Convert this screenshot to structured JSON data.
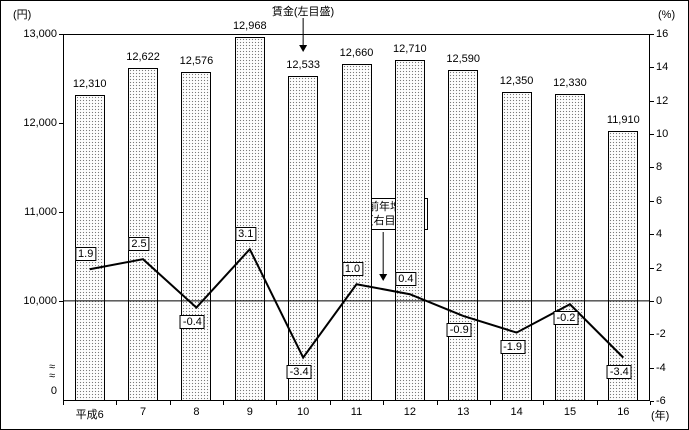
{
  "chart_data": {
    "type": "bar+line",
    "categories": [
      "平成6",
      "7",
      "8",
      "9",
      "10",
      "11",
      "12",
      "13",
      "14",
      "15",
      "16"
    ],
    "x_axis_unit": "(年)",
    "left_axis_unit": "(円)",
    "right_axis_unit": "(%)",
    "bar_series": {
      "name": "賃金",
      "axis": "left",
      "values": [
        12310,
        12622,
        12576,
        12968,
        12533,
        12660,
        12710,
        12590,
        12350,
        12330,
        11910
      ],
      "labels": [
        "12,310",
        "12,622",
        "12,576",
        "12,968",
        "12,533",
        "12,660",
        "12,710",
        "12,590",
        "12,350",
        "12,330",
        "11,910"
      ]
    },
    "line_series": {
      "name": "対前年増減率",
      "axis": "right",
      "values": [
        1.9,
        2.5,
        -0.4,
        3.1,
        -3.4,
        1.0,
        0.4,
        -0.9,
        -1.9,
        -0.2,
        -3.4
      ],
      "labels": [
        "1.9",
        "2.5",
        "-0.4",
        "3.1",
        "-3.4",
        "1.0",
        "0.4",
        "-0.9",
        "-1.9",
        "-0.2",
        "-3.4"
      ]
    },
    "left_axis": {
      "min": 10000,
      "max": 13000,
      "ticks": [
        13000,
        12000,
        11000,
        10000
      ],
      "tick_labels": [
        "13,000",
        "12,000",
        "11,000",
        "10,000"
      ],
      "break_symbol": "≈",
      "zero_label": "0"
    },
    "right_axis": {
      "min": -6,
      "max": 16,
      "step": 2,
      "tick_labels": [
        "16",
        "14",
        "12",
        "10",
        "8",
        "6",
        "4",
        "2",
        "0",
        "-2",
        "-4",
        "-6"
      ]
    },
    "annotations": {
      "bar_callout": "賃金(左目盛)",
      "line_callout_line1": "対前年増減率",
      "line_callout_line2": "（右目盛）"
    },
    "layout_hints": {
      "grid": "zero-line-only",
      "bar_fill": "stipple",
      "line_color": "#000000"
    }
  }
}
